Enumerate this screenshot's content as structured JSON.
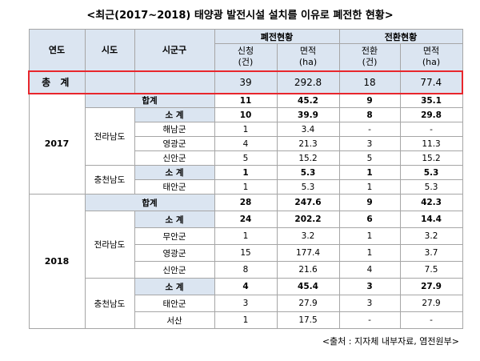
{
  "title": "<최근(2017~2018) 태양광 발전시설 설치를 이유로 폐전한 현황>",
  "header": {
    "year": "연도",
    "province": "시도",
    "district": "시군구",
    "closure": "폐전현황",
    "conversion": "전환현황",
    "closure_apply": "신청",
    "closure_apply_unit": "(건)",
    "closure_area": "면적",
    "closure_area_unit": "(ha)",
    "conversion_count": "전환",
    "conversion_count_unit": "(건)",
    "conversion_area": "면적",
    "conversion_area_unit": "(ha)"
  },
  "total": {
    "label": "총 계",
    "apply": "39",
    "area": "292.8",
    "conv": "18",
    "conv_area": "77.4"
  },
  "y2017": {
    "year": "2017",
    "hap": {
      "label": "합계",
      "apply": "11",
      "area": "45.2",
      "conv": "9",
      "conv_area": "35.1"
    },
    "jeonnam": {
      "name": "전라남도",
      "subtotal": {
        "label": "소 계",
        "apply": "10",
        "area": "39.9",
        "conv": "8",
        "conv_area": "29.8"
      },
      "rows": [
        {
          "name": "해남군",
          "apply": "1",
          "area": "3.4",
          "conv": "-",
          "conv_area": "-"
        },
        {
          "name": "영광군",
          "apply": "4",
          "area": "21.3",
          "conv": "3",
          "conv_area": "11.3"
        },
        {
          "name": "신안군",
          "apply": "5",
          "area": "15.2",
          "conv": "5",
          "conv_area": "15.2"
        }
      ]
    },
    "chungnam": {
      "name": "충천남도",
      "subtotal": {
        "label": "소 계",
        "apply": "1",
        "area": "5.3",
        "conv": "1",
        "conv_area": "5.3"
      },
      "rows": [
        {
          "name": "태안군",
          "apply": "1",
          "area": "5.3",
          "conv": "1",
          "conv_area": "5.3"
        }
      ]
    }
  },
  "y2018": {
    "year": "2018",
    "hap": {
      "label": "합계",
      "apply": "28",
      "area": "247.6",
      "conv": "9",
      "conv_area": "42.3"
    },
    "jeonnam": {
      "name": "전라남도",
      "subtotal": {
        "label": "소 계",
        "apply": "24",
        "area": "202.2",
        "conv": "6",
        "conv_area": "14.4"
      },
      "rows": [
        {
          "name": "무안군",
          "apply": "1",
          "area": "3.2",
          "conv": "1",
          "conv_area": "3.2"
        },
        {
          "name": "영광군",
          "apply": "15",
          "area": "177.4",
          "conv": "1",
          "conv_area": "3.7"
        },
        {
          "name": "신안군",
          "apply": "8",
          "area": "21.6",
          "conv": "4",
          "conv_area": "7.5"
        }
      ]
    },
    "chungnam": {
      "name": "충천남도",
      "subtotal": {
        "label": "소 계",
        "apply": "4",
        "area": "45.4",
        "conv": "3",
        "conv_area": "27.9"
      },
      "rows": [
        {
          "name": "태안군",
          "apply": "3",
          "area": "27.9",
          "conv": "3",
          "conv_area": "27.9"
        },
        {
          "name": "서산",
          "apply": "1",
          "area": "17.5",
          "conv": "-",
          "conv_area": "-"
        }
      ]
    }
  },
  "source": "<출처 : 지자체 내부자료, 염전원부>"
}
